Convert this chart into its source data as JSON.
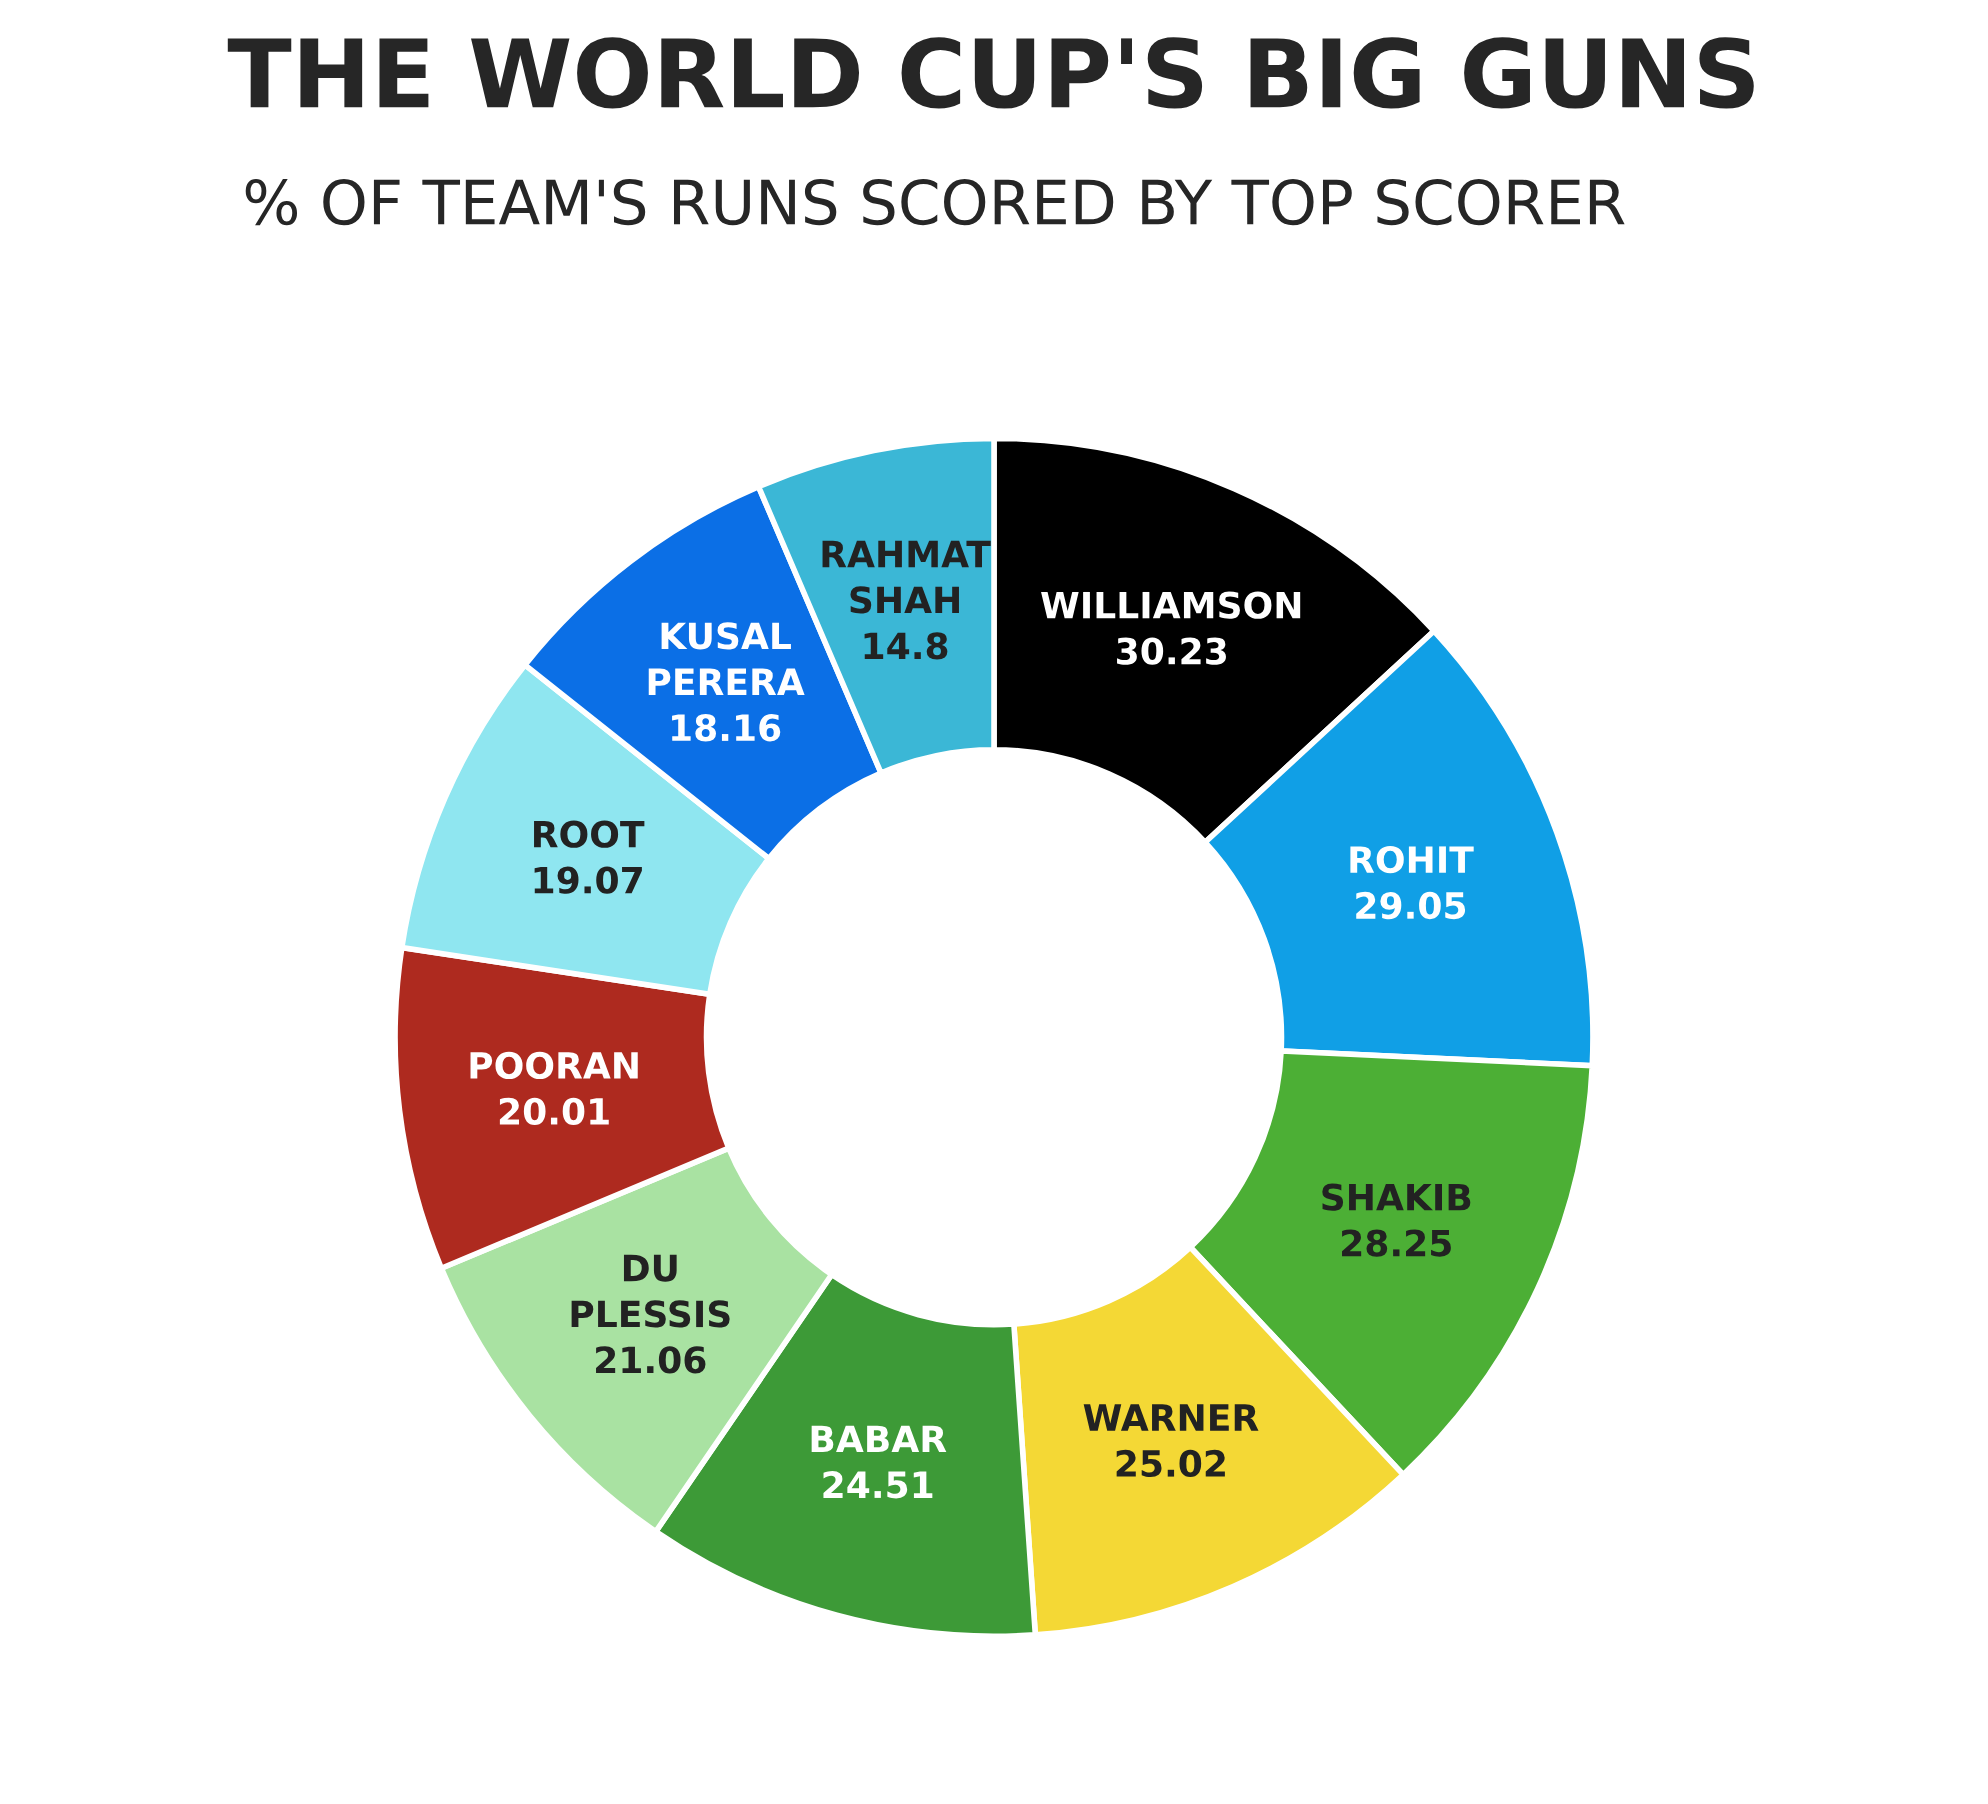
{
  "chart_data": {
    "type": "donut",
    "title": "THE WORLD CUP'S BIG GUNS",
    "subtitle": "% OF TEAM'S RUNS SCORED BY TOP SCORER",
    "categories": [
      "WILLIAMSON",
      "ROHIT",
      "SHAKIB",
      "WARNER",
      "BABAR",
      "DU\nPLESSIS",
      "POORAN",
      "ROOT",
      "KUSAL\nPERERA",
      "RAHMAT\nSHAH"
    ],
    "values": [
      30.23,
      29.05,
      28.25,
      25.02,
      24.51,
      21.06,
      20.01,
      19.07,
      18.16,
      14.8
    ],
    "colors": [
      "#000000",
      "#109fe6",
      "#4caf35",
      "#f4d835",
      "#3d9a37",
      "#a9e2a2",
      "#ae2a1f",
      "#8fe6f0",
      "#0b6fe6",
      "#3bb7d6"
    ],
    "data_labels": true
  }
}
